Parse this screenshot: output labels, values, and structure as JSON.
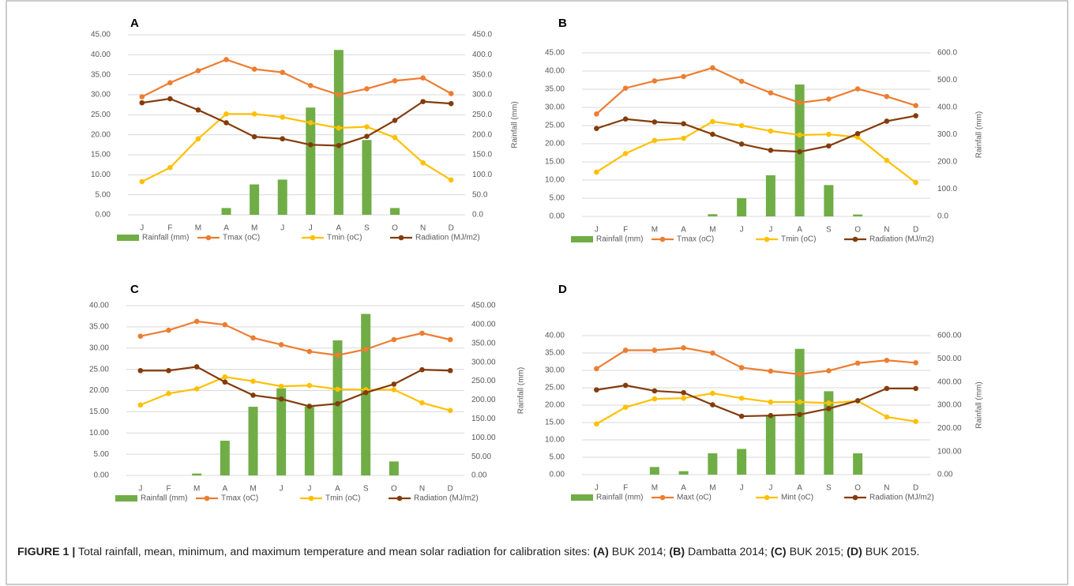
{
  "charts": [
    {
      "chart_data": {
        "type": "combo",
        "title": "A",
        "y2label": "Rainfall (mm)",
        "grid": true,
        "categories": [
          "J",
          "F",
          "M",
          "A",
          "M",
          "J",
          "J",
          "A",
          "S",
          "O",
          "N",
          "D"
        ],
        "ylim": [
          0,
          45
        ],
        "yticks": [
          {
            "value": 0,
            "label": "0.00"
          },
          {
            "value": 5,
            "label": "5.00"
          },
          {
            "value": 10,
            "label": "10.00"
          },
          {
            "value": 15,
            "label": "15.00"
          },
          {
            "value": 20,
            "label": "20.00"
          },
          {
            "value": 25,
            "label": "25.00"
          },
          {
            "value": 30,
            "label": "30.00"
          },
          {
            "value": 35,
            "label": "35.00"
          },
          {
            "value": 40,
            "label": "40.00"
          },
          {
            "value": 45,
            "label": "45.00"
          }
        ],
        "y2lim": [
          0,
          450
        ],
        "y2ticks": [
          {
            "value": 0,
            "label": "0.0"
          },
          {
            "value": 50,
            "label": "50.0"
          },
          {
            "value": 100,
            "label": "100.0"
          },
          {
            "value": 150,
            "label": "150.0"
          },
          {
            "value": 200,
            "label": "200.0"
          },
          {
            "value": 250,
            "label": "250.0"
          },
          {
            "value": 300,
            "label": "300.0"
          },
          {
            "value": 350,
            "label": "350.0"
          },
          {
            "value": 400,
            "label": "400.0"
          },
          {
            "value": 450,
            "label": "450.0"
          }
        ],
        "series": [
          {
            "name": "Rainfall (mm)",
            "type": "bar",
            "axis": "y2",
            "color": "#70ad47",
            "values": [
              0,
              0,
              0,
              17,
              76,
              88,
              268,
              412,
              187,
              17,
              0,
              0
            ]
          },
          {
            "name": "Tmax (oC)",
            "type": "line",
            "color": "#ed7d31",
            "values": [
              29.5,
              33,
              36,
              38.8,
              36.4,
              35.6,
              32.3,
              30,
              31.5,
              33.5,
              34.2,
              30.3
            ]
          },
          {
            "name": "Tmin (oC)",
            "type": "line",
            "color": "#ffc000",
            "values": [
              8.3,
              11.8,
              19,
              25.2,
              25.2,
              24.4,
              23,
              21.7,
              22,
              19.3,
              13,
              8.7
            ]
          },
          {
            "name": "Radiation (MJ/m2)",
            "type": "line",
            "color": "#843c0c",
            "values": [
              28,
              29,
              26.2,
              23,
              19.5,
              19,
              17.5,
              17.3,
              19.6,
              23.6,
              28.3,
              27.8
            ]
          }
        ]
      }
    },
    {
      "chart_data": {
        "type": "combo",
        "title": "B",
        "y2label": "Rainfall (mm)",
        "grid": true,
        "categories": [
          "J",
          "F",
          "M",
          "A",
          "M",
          "J",
          "J",
          "A",
          "S",
          "O",
          "N",
          "D"
        ],
        "ylim": [
          0,
          45
        ],
        "yticks": [
          {
            "value": 0,
            "label": "0.00"
          },
          {
            "value": 5,
            "label": "5.00"
          },
          {
            "value": 10,
            "label": "10.00"
          },
          {
            "value": 15,
            "label": "15.00"
          },
          {
            "value": 20,
            "label": "20.00"
          },
          {
            "value": 25,
            "label": "25.00"
          },
          {
            "value": 30,
            "label": "30.00"
          },
          {
            "value": 35,
            "label": "35.00"
          },
          {
            "value": 40,
            "label": "40.00"
          },
          {
            "value": 45,
            "label": "45.00"
          }
        ],
        "y2lim": [
          0,
          600
        ],
        "y2ticks": [
          {
            "value": 0,
            "label": "0.0"
          },
          {
            "value": 100,
            "label": "100.0"
          },
          {
            "value": 200,
            "label": "200.0"
          },
          {
            "value": 300,
            "label": "300.0"
          },
          {
            "value": 400,
            "label": "400.0"
          },
          {
            "value": 500,
            "label": "500.0"
          },
          {
            "value": 600,
            "label": "600.0"
          }
        ],
        "series": [
          {
            "name": "Rainfall (mm)",
            "type": "bar",
            "axis": "y2",
            "color": "#70ad47",
            "values": [
              0,
              0,
              0,
              0,
              8,
              67,
              151,
              484,
              115,
              7,
              0,
              0
            ]
          },
          {
            "name": "Tmax (oC)",
            "type": "line",
            "color": "#ed7d31",
            "values": [
              28.2,
              35.3,
              37.3,
              38.5,
              40.9,
              37.2,
              34,
              31.3,
              32.3,
              35.1,
              33,
              30.5
            ]
          },
          {
            "name": "Tmin (oC)",
            "type": "line",
            "color": "#ffc000",
            "values": [
              12.2,
              17.3,
              20.9,
              21.5,
              26.1,
              25,
              23.5,
              22.4,
              22.6,
              21.8,
              15.4,
              9.3
            ]
          },
          {
            "name": "Radiation (MJ/m2)",
            "type": "line",
            "color": "#843c0c",
            "values": [
              24.2,
              26.8,
              26,
              25.5,
              22.6,
              19.9,
              18.2,
              17.8,
              19.4,
              22.8,
              26.2,
              27.7
            ]
          }
        ]
      }
    },
    {
      "chart_data": {
        "type": "combo",
        "title": "C",
        "y2label": "Rainfall (mm)",
        "grid": true,
        "categories": [
          "J",
          "F",
          "M",
          "A",
          "M",
          "J",
          "J",
          "A",
          "S",
          "O",
          "N",
          "D"
        ],
        "ylim": [
          0,
          40
        ],
        "yticks": [
          {
            "value": 0,
            "label": "0.00"
          },
          {
            "value": 5,
            "label": "5.00"
          },
          {
            "value": 10,
            "label": "10.00"
          },
          {
            "value": 15,
            "label": "15.00"
          },
          {
            "value": 20,
            "label": "20.00"
          },
          {
            "value": 25,
            "label": "25.00"
          },
          {
            "value": 30,
            "label": "30.00"
          },
          {
            "value": 35,
            "label": "35.00"
          },
          {
            "value": 40,
            "label": "40.00"
          }
        ],
        "y2lim": [
          0,
          450
        ],
        "y2ticks": [
          {
            "value": 0,
            "label": "0.00"
          },
          {
            "value": 50,
            "label": "50.00"
          },
          {
            "value": 100,
            "label": "100.00"
          },
          {
            "value": 150,
            "label": "150.00"
          },
          {
            "value": 200,
            "label": "200.00"
          },
          {
            "value": 250,
            "label": "250.00"
          },
          {
            "value": 300,
            "label": "300.00"
          },
          {
            "value": 350,
            "label": "350.00"
          },
          {
            "value": 400,
            "label": "400.00"
          },
          {
            "value": 450,
            "label": "450.00"
          }
        ],
        "series": [
          {
            "name": "Rainfall (mm)",
            "type": "bar",
            "axis": "y2",
            "color": "#70ad47",
            "values": [
              0,
              0,
              5,
              92,
              182,
              231,
              183,
              358,
              428,
              37,
              0,
              0
            ]
          },
          {
            "name": "Tmax (oC)",
            "type": "line",
            "color": "#ed7d31",
            "values": [
              32.8,
              34.2,
              36.3,
              35.5,
              32.4,
              30.8,
              29.2,
              28.3,
              29.7,
              32,
              33.5,
              32
            ]
          },
          {
            "name": "Tmin (oC)",
            "type": "line",
            "color": "#ffc000",
            "values": [
              16.6,
              19.3,
              20.4,
              23.2,
              22.2,
              21,
              21.2,
              20.3,
              20.2,
              20.2,
              17.1,
              15.3
            ]
          },
          {
            "name": "Radiation (MJ/m2)",
            "type": "line",
            "color": "#843c0c",
            "values": [
              24.7,
              24.7,
              25.6,
              22,
              18.9,
              18,
              16.3,
              16.9,
              19.5,
              21.5,
              24.9,
              24.7
            ]
          }
        ]
      }
    },
    {
      "chart_data": {
        "type": "combo",
        "title": "D",
        "y2label": "Rainfall (mm)",
        "grid": true,
        "categories": [
          "J",
          "F",
          "M",
          "A",
          "M",
          "J",
          "J",
          "A",
          "S",
          "O",
          "N",
          "D"
        ],
        "ylim": [
          0,
          40
        ],
        "yticks": [
          {
            "value": 0,
            "label": "0.00"
          },
          {
            "value": 5,
            "label": "5.00"
          },
          {
            "value": 10,
            "label": "10.00"
          },
          {
            "value": 15,
            "label": "15.00"
          },
          {
            "value": 20,
            "label": "20.00"
          },
          {
            "value": 25,
            "label": "25.00"
          },
          {
            "value": 30,
            "label": "30.00"
          },
          {
            "value": 35,
            "label": "35.00"
          },
          {
            "value": 40,
            "label": "40.00"
          }
        ],
        "y2lim": [
          0,
          600
        ],
        "y2ticks": [
          {
            "value": 0,
            "label": "0.00"
          },
          {
            "value": 100,
            "label": "100.00"
          },
          {
            "value": 200,
            "label": "200.00"
          },
          {
            "value": 300,
            "label": "300.00"
          },
          {
            "value": 400,
            "label": "400.00"
          },
          {
            "value": 500,
            "label": "500.00"
          },
          {
            "value": 600,
            "label": "600.00"
          }
        ],
        "series": [
          {
            "name": "Rainfall (mm)",
            "type": "bar",
            "axis": "y2",
            "color": "#70ad47",
            "values": [
              0,
              0,
              33,
              15,
              92,
              111,
              255,
              543,
              360,
              92,
              0,
              0
            ]
          },
          {
            "name": "Maxt (oC)",
            "type": "line",
            "color": "#ed7d31",
            "values": [
              30.5,
              35.8,
              35.8,
              36.5,
              35,
              30.8,
              29.8,
              28.9,
              29.9,
              32.1,
              32.9,
              32.2
            ]
          },
          {
            "name": "Mint (oC)",
            "type": "line",
            "color": "#ffc000",
            "values": [
              14.6,
              19.4,
              21.8,
              22,
              23.4,
              22,
              20.9,
              20.9,
              20.6,
              21.2,
              16.6,
              15.3
            ]
          },
          {
            "name": "Radiation (MJ/m2)",
            "type": "line",
            "color": "#843c0c",
            "values": [
              24.4,
              25.7,
              24.1,
              23.6,
              20.1,
              16.8,
              17,
              17.3,
              19,
              21.3,
              24.8,
              24.8
            ]
          }
        ]
      }
    }
  ],
  "caption": [
    {
      "text": "FIGURE 1 |",
      "bold": true
    },
    {
      "text": " Total rainfall, mean, minimum, and maximum temperature and mean solar radiation for calibration sites: ",
      "bold": false
    },
    {
      "text": "(A)",
      "bold": true
    },
    {
      "text": " BUK 2014; ",
      "bold": false
    },
    {
      "text": "(B)",
      "bold": true
    },
    {
      "text": " Dambatta 2014; ",
      "bold": false
    },
    {
      "text": "(C)",
      "bold": true
    },
    {
      "text": " BUK 2015; ",
      "bold": false
    },
    {
      "text": "(D)",
      "bold": true
    },
    {
      "text": " BUK 2015.",
      "bold": false
    }
  ]
}
